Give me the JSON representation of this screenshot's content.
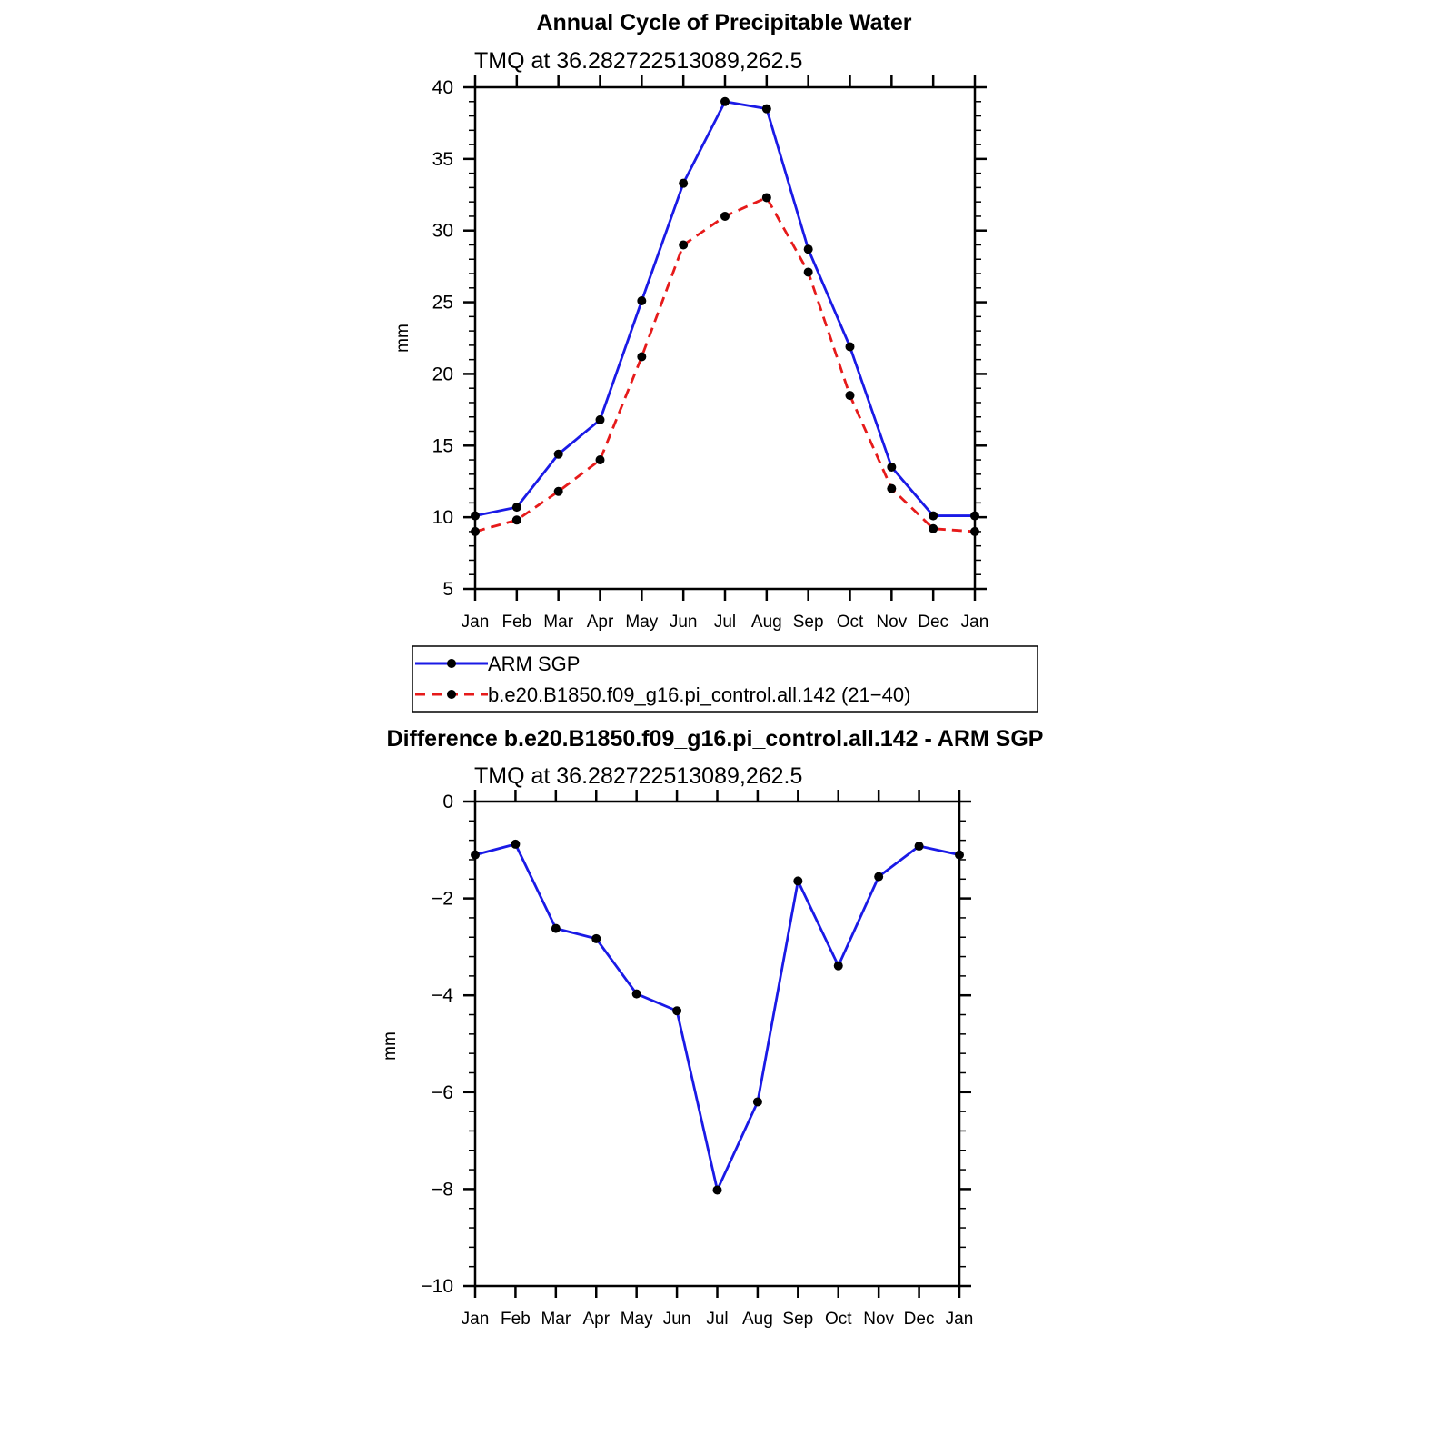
{
  "colors": {
    "obs": "#1a1ae6",
    "model": "#e61a1a",
    "marker": "#000000",
    "axis": "#000000"
  },
  "chart_data": [
    {
      "type": "line",
      "title": "Annual Cycle of Precipitable Water",
      "subtitle": "TMQ at 36.282722513089,262.5",
      "ylabel": "mm",
      "xlabel": "",
      "categories": [
        "Jan",
        "Feb",
        "Mar",
        "Apr",
        "May",
        "Jun",
        "Jul",
        "Aug",
        "Sep",
        "Oct",
        "Nov",
        "Dec",
        "Jan"
      ],
      "ylim": [
        5,
        40
      ],
      "yticks": [
        5,
        10,
        15,
        20,
        25,
        30,
        35,
        40
      ],
      "series": [
        {
          "name": "ARM SGP",
          "style": "solid",
          "color": "#1a1ae6",
          "values": [
            10.1,
            10.7,
            14.4,
            16.8,
            25.1,
            33.3,
            39.0,
            38.5,
            28.7,
            21.9,
            13.5,
            10.1,
            10.1
          ]
        },
        {
          "name": "b.e20.B1850.f09_g16.pi_control.all.142 (21−40)",
          "style": "dashed",
          "color": "#e61a1a",
          "values": [
            9.0,
            9.8,
            11.8,
            14.0,
            21.2,
            29.0,
            31.0,
            32.3,
            27.1,
            18.5,
            12.0,
            9.2,
            9.0
          ]
        }
      ],
      "legend": "below"
    },
    {
      "type": "line",
      "title": "Difference b.e20.B1850.f09_g16.pi_control.all.142 - ARM SGP",
      "subtitle": "TMQ at 36.282722513089,262.5",
      "ylabel": "mm",
      "xlabel": "",
      "categories": [
        "Jan",
        "Feb",
        "Mar",
        "Apr",
        "May",
        "Jun",
        "Jul",
        "Aug",
        "Sep",
        "Oct",
        "Nov",
        "Dec",
        "Jan"
      ],
      "ylim": [
        -10,
        0
      ],
      "yticks": [
        0,
        -2,
        -4,
        -6,
        -8,
        -10
      ],
      "ytick_labels": [
        "0",
        "−2",
        "−4",
        "−6",
        "−8",
        "−10"
      ],
      "series": [
        {
          "name": "Difference",
          "style": "solid",
          "color": "#1a1ae6",
          "values": [
            -1.1,
            -0.88,
            -2.62,
            -2.83,
            -3.97,
            -4.32,
            -8.02,
            -6.2,
            -1.64,
            -3.39,
            -1.55,
            -0.92,
            -1.1
          ]
        }
      ]
    }
  ]
}
